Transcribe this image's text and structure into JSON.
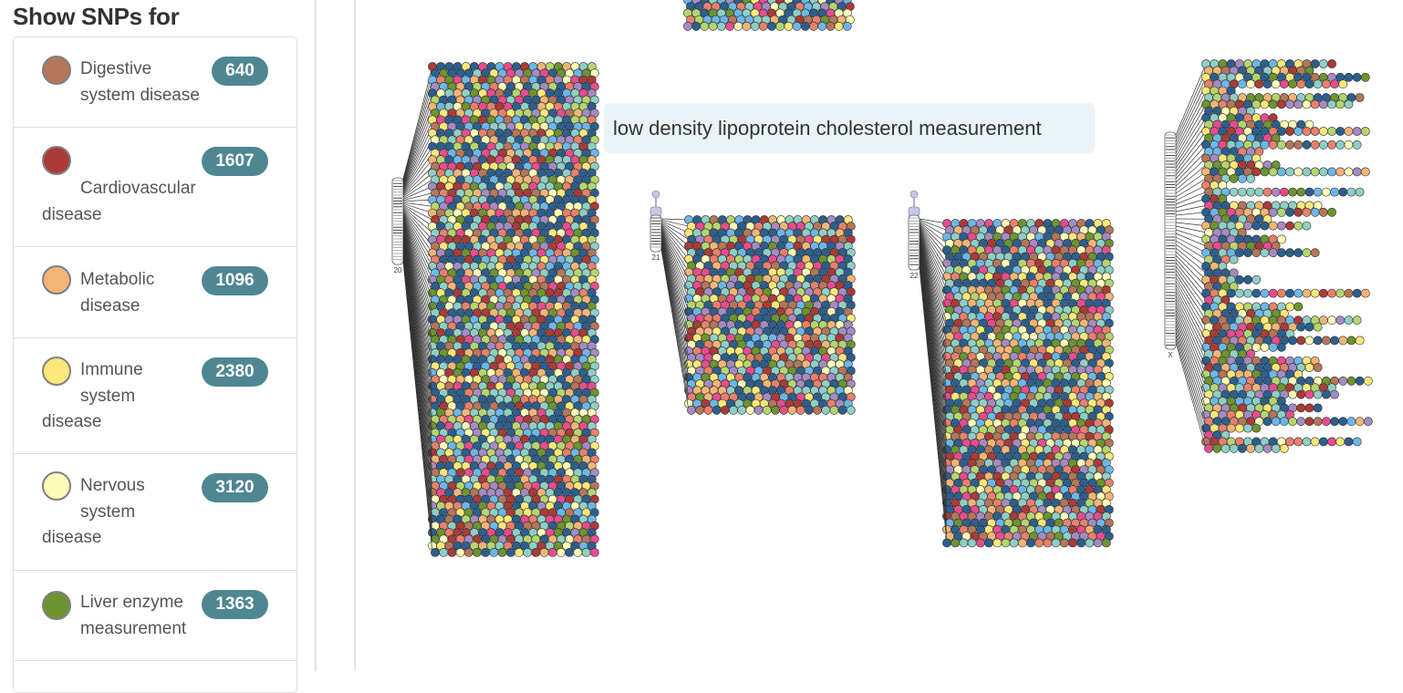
{
  "sidebar": {
    "title": "Show SNPs for",
    "items": [
      {
        "id": "digestive",
        "label_lines": [
          "Digestive",
          "system disease"
        ],
        "count": "640",
        "color": "#b5765a"
      },
      {
        "id": "cardiovascular",
        "label_lines": [
          "",
          "Cardiovascular",
          "disease"
        ],
        "count": "1607",
        "color": "#aa3b38"
      },
      {
        "id": "metabolic",
        "label_lines": [
          "Metabolic",
          "disease"
        ],
        "count": "1096",
        "color": "#f3b576"
      },
      {
        "id": "immune",
        "label_lines": [
          "Immune",
          "system",
          "disease"
        ],
        "count": "2380",
        "color": "#fbe879"
      },
      {
        "id": "nervous",
        "label_lines": [
          "Nervous",
          "system",
          "disease"
        ],
        "count": "3120",
        "color": "#fdfdb9"
      },
      {
        "id": "liver",
        "label_lines": [
          "Liver enzyme",
          "measurement"
        ],
        "count": "1363",
        "color": "#6c9430"
      }
    ]
  },
  "chromosomes": [
    {
      "label": "20"
    },
    {
      "label": "21"
    },
    {
      "label": "22"
    },
    {
      "label": "X"
    }
  ],
  "tooltip": {
    "text": "low density lipoprotein cholesterol measurement"
  },
  "snp_colors": {
    "dark_blue": "#2d5f8e",
    "teal": "#8ecfc6",
    "light_green": "#b5d56f",
    "pink": "#e84c8d",
    "light_blue": "#6cb7e8",
    "purple": "#a48bc4",
    "yellow": "#fbe879",
    "cream": "#fdfdb9",
    "orange": "#f3b576",
    "red": "#aa3b38",
    "brown": "#b5765a",
    "green": "#6c9430",
    "salmon": "#e8806b"
  }
}
